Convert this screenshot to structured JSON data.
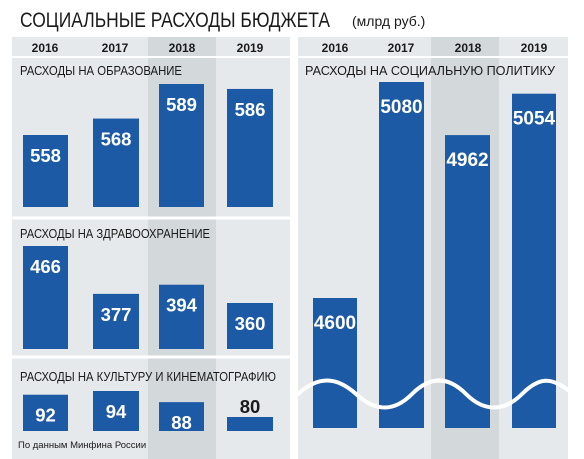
{
  "title": "СОЦИАЛЬНЫЕ РАСХОДЫ БЮДЖЕТА",
  "unit": "(млрд руб.)",
  "source": "По данным Минфина России",
  "colors": {
    "bar": "#1c5aa6",
    "panel": "#e6e9eb",
    "panel_highlight": "#d3d8db",
    "separator": "#ffffff",
    "bar_text": "#ffffff",
    "text": "#1a1a1a"
  },
  "chart_data": [
    {
      "type": "bar",
      "title": "РАСХОДЫ НА ОБРАЗОВАНИЕ",
      "categories": [
        "2016",
        "2017",
        "2018",
        "2019"
      ],
      "values": [
        558,
        568,
        589,
        586
      ],
      "value_labels": [
        "558",
        "568",
        "589",
        "586"
      ]
    },
    {
      "type": "bar",
      "title": "РАСХОДЫ НА ЗДРАВООХРАНЕНИЕ",
      "categories": [
        "2016",
        "2017",
        "2018",
        "2019"
      ],
      "values": [
        466,
        377,
        394,
        360
      ],
      "value_labels": [
        "466",
        "377",
        "394",
        "360"
      ]
    },
    {
      "type": "bar",
      "title": "РАСХОДЫ НА КУЛЬТУРУ И КИНЕМАТОГРАФИЮ",
      "categories": [
        "2016",
        "2017",
        "2018",
        "2019"
      ],
      "values": [
        92,
        94,
        88,
        80
      ],
      "value_labels": [
        "92",
        "94",
        "88",
        "80"
      ]
    },
    {
      "type": "bar",
      "title": "РАСХОДЫ НА СОЦИАЛЬНУЮ ПОЛИТИКУ",
      "categories": [
        "2016",
        "2017",
        "2018",
        "2019"
      ],
      "values": [
        4600,
        5080,
        4962,
        5054
      ],
      "value_labels": [
        "4600",
        "5080",
        "4962",
        "5054"
      ],
      "axis_break": true
    }
  ]
}
